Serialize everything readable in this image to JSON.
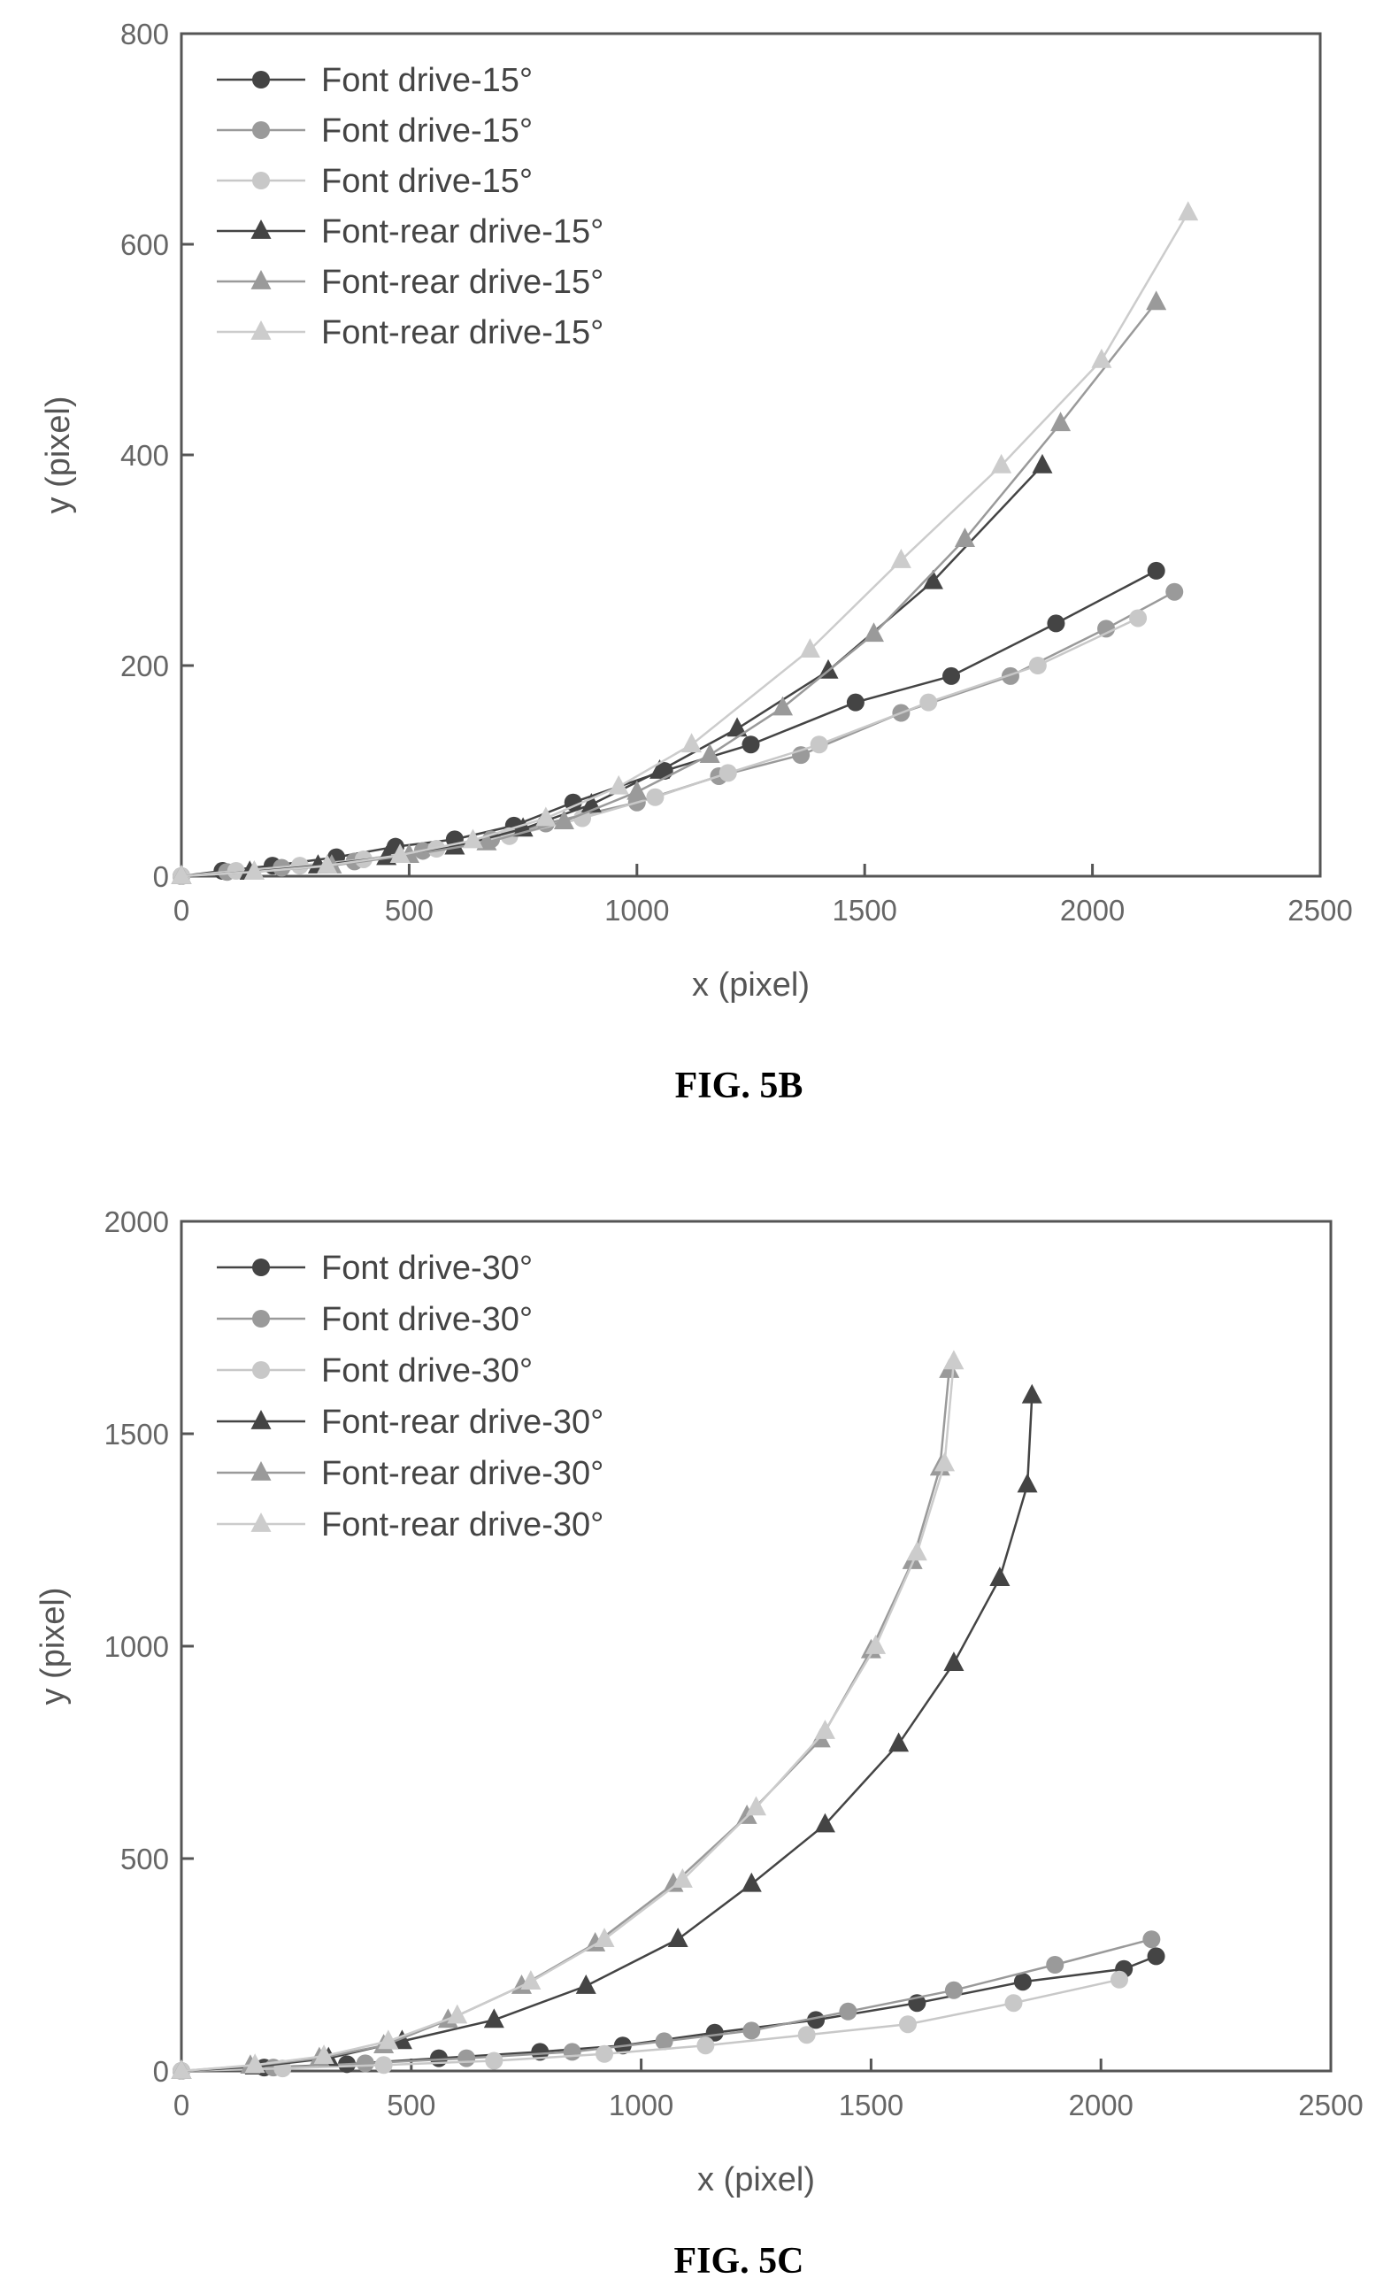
{
  "chart_data": [
    {
      "type": "line",
      "caption": "FIG. 5B",
      "xlabel": "x (pixel)",
      "ylabel": "y (pixel)",
      "xlim": [
        0,
        2500
      ],
      "ylim": [
        0,
        800
      ],
      "xticks": [
        "0",
        "500",
        "1000",
        "1500",
        "2000",
        "2500"
      ],
      "yticks": [
        "0",
        "200",
        "400",
        "600",
        "800"
      ],
      "legend_position": "top-left",
      "series": [
        {
          "name": "Font drive-15°",
          "marker": "circle",
          "color": "#444444",
          "x": [
            0,
            90,
            200,
            340,
            470,
            600,
            730,
            860,
            1060,
            1250,
            1480,
            1690,
            1920,
            2140
          ],
          "y": [
            0,
            5,
            10,
            18,
            28,
            35,
            48,
            70,
            100,
            125,
            165,
            190,
            240,
            290
          ]
        },
        {
          "name": "Font drive-15°",
          "marker": "circle",
          "color": "#9a9a9a",
          "x": [
            0,
            100,
            220,
            380,
            530,
            680,
            800,
            1000,
            1180,
            1360,
            1580,
            1820,
            2030,
            2180
          ],
          "y": [
            0,
            4,
            8,
            14,
            24,
            35,
            50,
            70,
            95,
            115,
            155,
            190,
            235,
            270
          ]
        },
        {
          "name": "Font drive-15°",
          "marker": "circle",
          "color": "#c8c8c8",
          "x": [
            0,
            120,
            260,
            400,
            560,
            720,
            880,
            1040,
            1200,
            1400,
            1640,
            1880,
            2100
          ],
          "y": [
            0,
            5,
            10,
            16,
            26,
            38,
            55,
            75,
            98,
            125,
            165,
            200,
            245
          ]
        },
        {
          "name": "Font-rear drive-15°",
          "marker": "triangle",
          "color": "#444444",
          "x": [
            0,
            150,
            300,
            450,
            600,
            750,
            900,
            1050,
            1220,
            1420,
            1650,
            1890
          ],
          "y": [
            0,
            4,
            10,
            18,
            28,
            45,
            68,
            100,
            140,
            195,
            280,
            390
          ]
        },
        {
          "name": "Font-rear drive-15°",
          "marker": "triangle",
          "color": "#9a9a9a",
          "x": [
            0,
            160,
            330,
            500,
            670,
            840,
            1000,
            1160,
            1320,
            1520,
            1720,
            1930,
            2140
          ],
          "y": [
            0,
            4,
            10,
            20,
            32,
            52,
            80,
            115,
            160,
            230,
            320,
            430,
            545
          ]
        },
        {
          "name": "Font-rear drive-15°",
          "marker": "triangle",
          "color": "#cccccc",
          "x": [
            0,
            160,
            320,
            480,
            640,
            800,
            960,
            1120,
            1380,
            1580,
            1800,
            2020,
            2210
          ],
          "y": [
            0,
            4,
            10,
            20,
            34,
            55,
            85,
            125,
            215,
            300,
            390,
            490,
            630
          ]
        }
      ]
    },
    {
      "type": "line",
      "caption": "FIG. 5C",
      "xlabel": "x (pixel)",
      "ylabel": "y (pixel)",
      "xlim": [
        0,
        2500
      ],
      "ylim": [
        0,
        2000
      ],
      "xticks": [
        "0",
        "500",
        "1000",
        "1500",
        "2000",
        "2500"
      ],
      "yticks": [
        "0",
        "500",
        "1000",
        "1500",
        "2000"
      ],
      "legend_position": "top-left",
      "series": [
        {
          "name": "Font drive-30°",
          "marker": "circle",
          "color": "#444444",
          "x": [
            0,
            180,
            360,
            560,
            780,
            960,
            1160,
            1380,
            1600,
            1830,
            2050,
            2120
          ],
          "y": [
            0,
            8,
            16,
            30,
            45,
            60,
            90,
            120,
            160,
            210,
            240,
            270
          ]
        },
        {
          "name": "Font drive-30°",
          "marker": "circle",
          "color": "#9a9a9a",
          "x": [
            0,
            200,
            400,
            620,
            850,
            1050,
            1240,
            1450,
            1680,
            1900,
            2110
          ],
          "y": [
            0,
            8,
            18,
            30,
            45,
            70,
            95,
            140,
            190,
            250,
            310
          ]
        },
        {
          "name": "Font drive-30°",
          "marker": "circle",
          "color": "#c8c8c8",
          "x": [
            0,
            220,
            440,
            680,
            920,
            1140,
            1360,
            1580,
            1810,
            2040
          ],
          "y": [
            0,
            6,
            14,
            24,
            40,
            60,
            85,
            110,
            160,
            215
          ]
        },
        {
          "name": "Font-rear drive-30°",
          "marker": "triangle",
          "color": "#444444",
          "x": [
            0,
            160,
            320,
            480,
            680,
            880,
            1080,
            1240,
            1400,
            1560,
            1680,
            1780,
            1840,
            1850
          ],
          "y": [
            0,
            10,
            30,
            70,
            120,
            200,
            310,
            440,
            580,
            770,
            960,
            1160,
            1380,
            1590
          ]
        },
        {
          "name": "Font-rear drive-30°",
          "marker": "triangle",
          "color": "#9a9a9a",
          "x": [
            0,
            150,
            300,
            440,
            580,
            740,
            900,
            1070,
            1230,
            1390,
            1500,
            1590,
            1650,
            1670
          ],
          "y": [
            0,
            12,
            30,
            60,
            120,
            200,
            300,
            440,
            600,
            780,
            990,
            1200,
            1420,
            1650
          ]
        },
        {
          "name": "Font-rear drive-30°",
          "marker": "triangle",
          "color": "#cccccc",
          "x": [
            0,
            160,
            310,
            450,
            600,
            760,
            920,
            1090,
            1250,
            1400,
            1510,
            1600,
            1660,
            1680
          ],
          "y": [
            0,
            14,
            35,
            70,
            130,
            210,
            310,
            450,
            620,
            800,
            1000,
            1220,
            1430,
            1670
          ]
        }
      ]
    }
  ]
}
